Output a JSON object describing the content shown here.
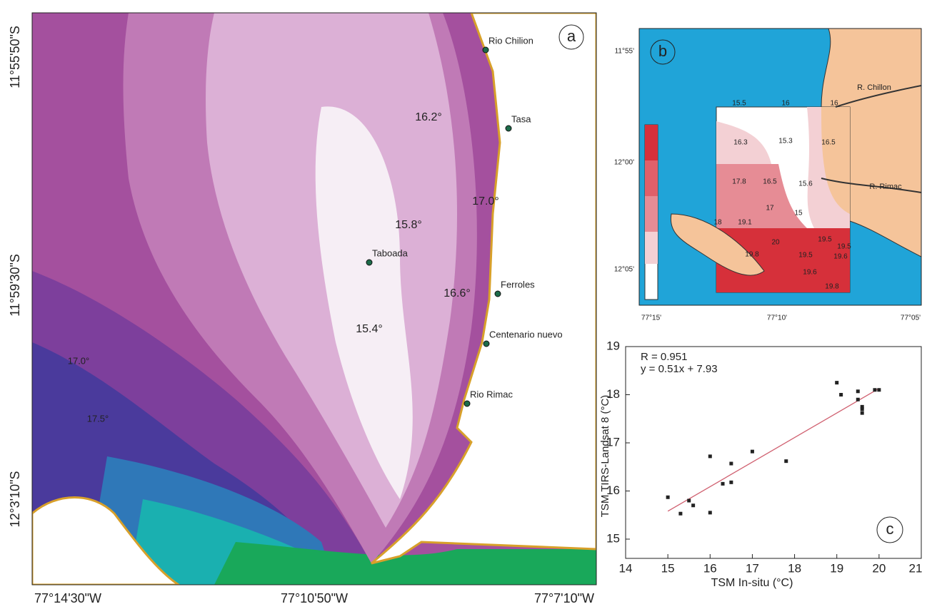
{
  "panel_a": {
    "label": "a",
    "lat_labels": [
      "11°55'50\"S",
      "11°59'30\"S",
      "12°3'10\"S"
    ],
    "lon_labels": [
      "77°14'30\"W",
      "77°10'50\"W",
      "77°7'10\"W"
    ],
    "stations": [
      "Rio Chilion",
      "Tasa",
      "Taboada",
      "Ferroles",
      "Centenario nuevo",
      "Rio Rimac"
    ],
    "isotherms": [
      "16.2°",
      "17.0°",
      "15.8°",
      "16.6°",
      "15.4°",
      "17.0°",
      "17.5°"
    ]
  },
  "panel_b": {
    "label": "b",
    "lat_labels": [
      "11°55'",
      "12°00'",
      "12°05'"
    ],
    "lon_labels": [
      "77°15'",
      "77°10'",
      "77°05'"
    ],
    "rivers": [
      "R. Chillon",
      "R. Rimac"
    ],
    "samples": [
      "15.5",
      "16",
      "16",
      "16.3",
      "15.3",
      "16.5",
      "17.8",
      "16.5",
      "15.6",
      "17",
      "15",
      "18",
      "19.1",
      "20",
      "19.5",
      "19.5",
      "19.8",
      "19.5",
      "19.6",
      "19.6",
      "19.8"
    ]
  },
  "chart_data": {
    "type": "scatter",
    "label": "c",
    "annotations": [
      "R = 0.951",
      "y = 0.51x + 7.93"
    ],
    "x_label": "TSM In-situ (°C)",
    "y_label": "TSM TIRS-Landsat 8 (°C)",
    "xlim": [
      14,
      21
    ],
    "xticks": [
      14,
      15,
      16,
      17,
      18,
      19,
      20,
      21
    ],
    "ylim": [
      14.6,
      19
    ],
    "yticks": [
      15,
      16,
      17,
      18,
      19
    ],
    "color": "#222222",
    "x": [
      15,
      15.3,
      15.5,
      15.6,
      16,
      16,
      16.3,
      16.5,
      16.5,
      17,
      17.8,
      19,
      19.1,
      19.5,
      19.5,
      19.6,
      19.6,
      19.6,
      19.9,
      20
    ],
    "y": [
      15.87,
      15.53,
      15.8,
      15.7,
      15.55,
      16.72,
      16.15,
      16.57,
      16.18,
      16.82,
      16.62,
      18.25,
      18.0,
      18.07,
      17.9,
      17.75,
      17.7,
      17.62,
      18.1,
      18.1
    ],
    "fit_line": {
      "color": "#d06070",
      "x": [
        15,
        20
      ],
      "y": [
        15.58,
        18.13
      ]
    }
  }
}
